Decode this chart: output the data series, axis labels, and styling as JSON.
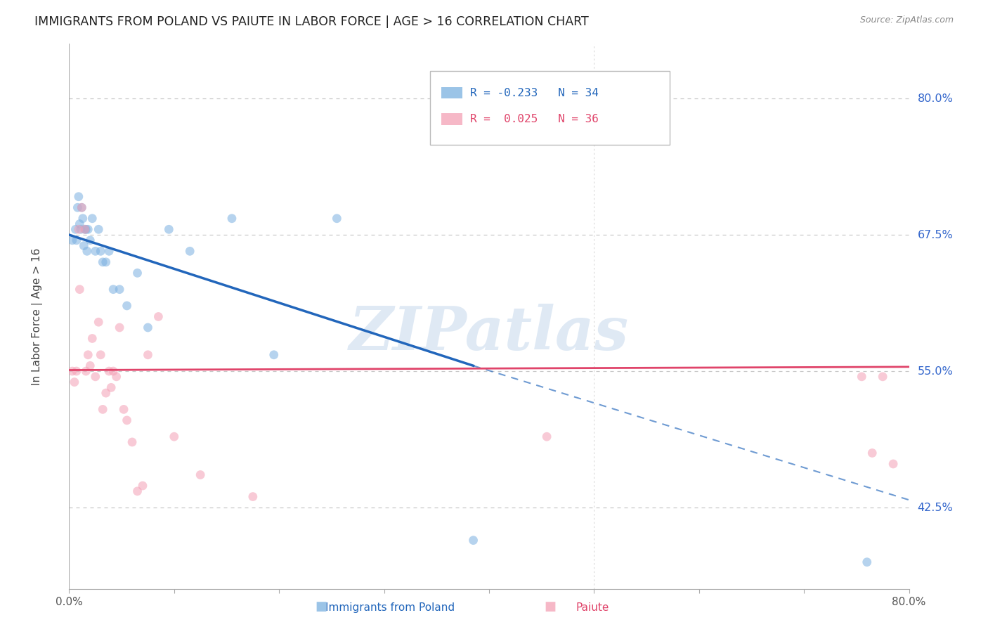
{
  "title": "IMMIGRANTS FROM POLAND VS PAIUTE IN LABOR FORCE | AGE > 16 CORRELATION CHART",
  "source": "Source: ZipAtlas.com",
  "ylabel": "In Labor Force | Age > 16",
  "xlim": [
    0.0,
    0.8
  ],
  "ylim": [
    0.35,
    0.85
  ],
  "yticks": [
    0.425,
    0.55,
    0.675,
    0.8
  ],
  "ytick_labels": [
    "42.5%",
    "55.0%",
    "67.5%",
    "80.0%"
  ],
  "background_color": "#ffffff",
  "grid_color": "#c8c8c8",
  "watermark": "ZIPatlas",
  "poland_color": "#7ab0e0",
  "paiute_color": "#f4a0b5",
  "poland_scatter_x": [
    0.003,
    0.006,
    0.007,
    0.008,
    0.009,
    0.01,
    0.011,
    0.012,
    0.013,
    0.014,
    0.015,
    0.016,
    0.017,
    0.018,
    0.02,
    0.022,
    0.025,
    0.028,
    0.03,
    0.032,
    0.035,
    0.038,
    0.042,
    0.048,
    0.055,
    0.065,
    0.075,
    0.095,
    0.115,
    0.155,
    0.195,
    0.255,
    0.385,
    0.76
  ],
  "poland_scatter_y": [
    0.67,
    0.68,
    0.67,
    0.7,
    0.71,
    0.685,
    0.68,
    0.7,
    0.69,
    0.665,
    0.68,
    0.68,
    0.66,
    0.68,
    0.67,
    0.69,
    0.66,
    0.68,
    0.66,
    0.65,
    0.65,
    0.66,
    0.625,
    0.625,
    0.61,
    0.64,
    0.59,
    0.68,
    0.66,
    0.69,
    0.565,
    0.69,
    0.395,
    0.375
  ],
  "paiute_scatter_x": [
    0.003,
    0.005,
    0.007,
    0.009,
    0.01,
    0.012,
    0.015,
    0.016,
    0.018,
    0.02,
    0.022,
    0.025,
    0.028,
    0.03,
    0.032,
    0.035,
    0.038,
    0.04,
    0.042,
    0.045,
    0.048,
    0.052,
    0.055,
    0.06,
    0.065,
    0.07,
    0.075,
    0.085,
    0.1,
    0.125,
    0.175,
    0.455,
    0.755,
    0.765,
    0.775,
    0.785
  ],
  "paiute_scatter_y": [
    0.55,
    0.54,
    0.55,
    0.68,
    0.625,
    0.7,
    0.68,
    0.55,
    0.565,
    0.555,
    0.58,
    0.545,
    0.595,
    0.565,
    0.515,
    0.53,
    0.55,
    0.535,
    0.55,
    0.545,
    0.59,
    0.515,
    0.505,
    0.485,
    0.44,
    0.445,
    0.565,
    0.6,
    0.49,
    0.455,
    0.435,
    0.49,
    0.545,
    0.475,
    0.545,
    0.465
  ],
  "poland_trend_start_x": 0.0,
  "poland_trend_start_y": 0.675,
  "poland_trend_solid_end_x": 0.385,
  "poland_trend_solid_end_y": 0.555,
  "poland_trend_dash_end_x": 0.8,
  "poland_trend_dash_end_y": 0.432,
  "paiute_trend_start_x": 0.0,
  "paiute_trend_start_y": 0.551,
  "paiute_trend_end_x": 0.8,
  "paiute_trend_end_y": 0.554,
  "poland_dot_size": 85,
  "paiute_dot_size": 85,
  "marker_alpha": 0.55,
  "poland_line_color": "#2266bb",
  "paiute_line_color": "#e0446a",
  "legend_label_poland": "R = -0.233   N = 34",
  "legend_label_paiute": "R =  0.025   N = 36",
  "legend_text_color_poland": "#2266bb",
  "legend_text_color_paiute": "#e0446a",
  "bottom_legend_poland": "Immigrants from Poland",
  "bottom_legend_paiute": "Paiute"
}
